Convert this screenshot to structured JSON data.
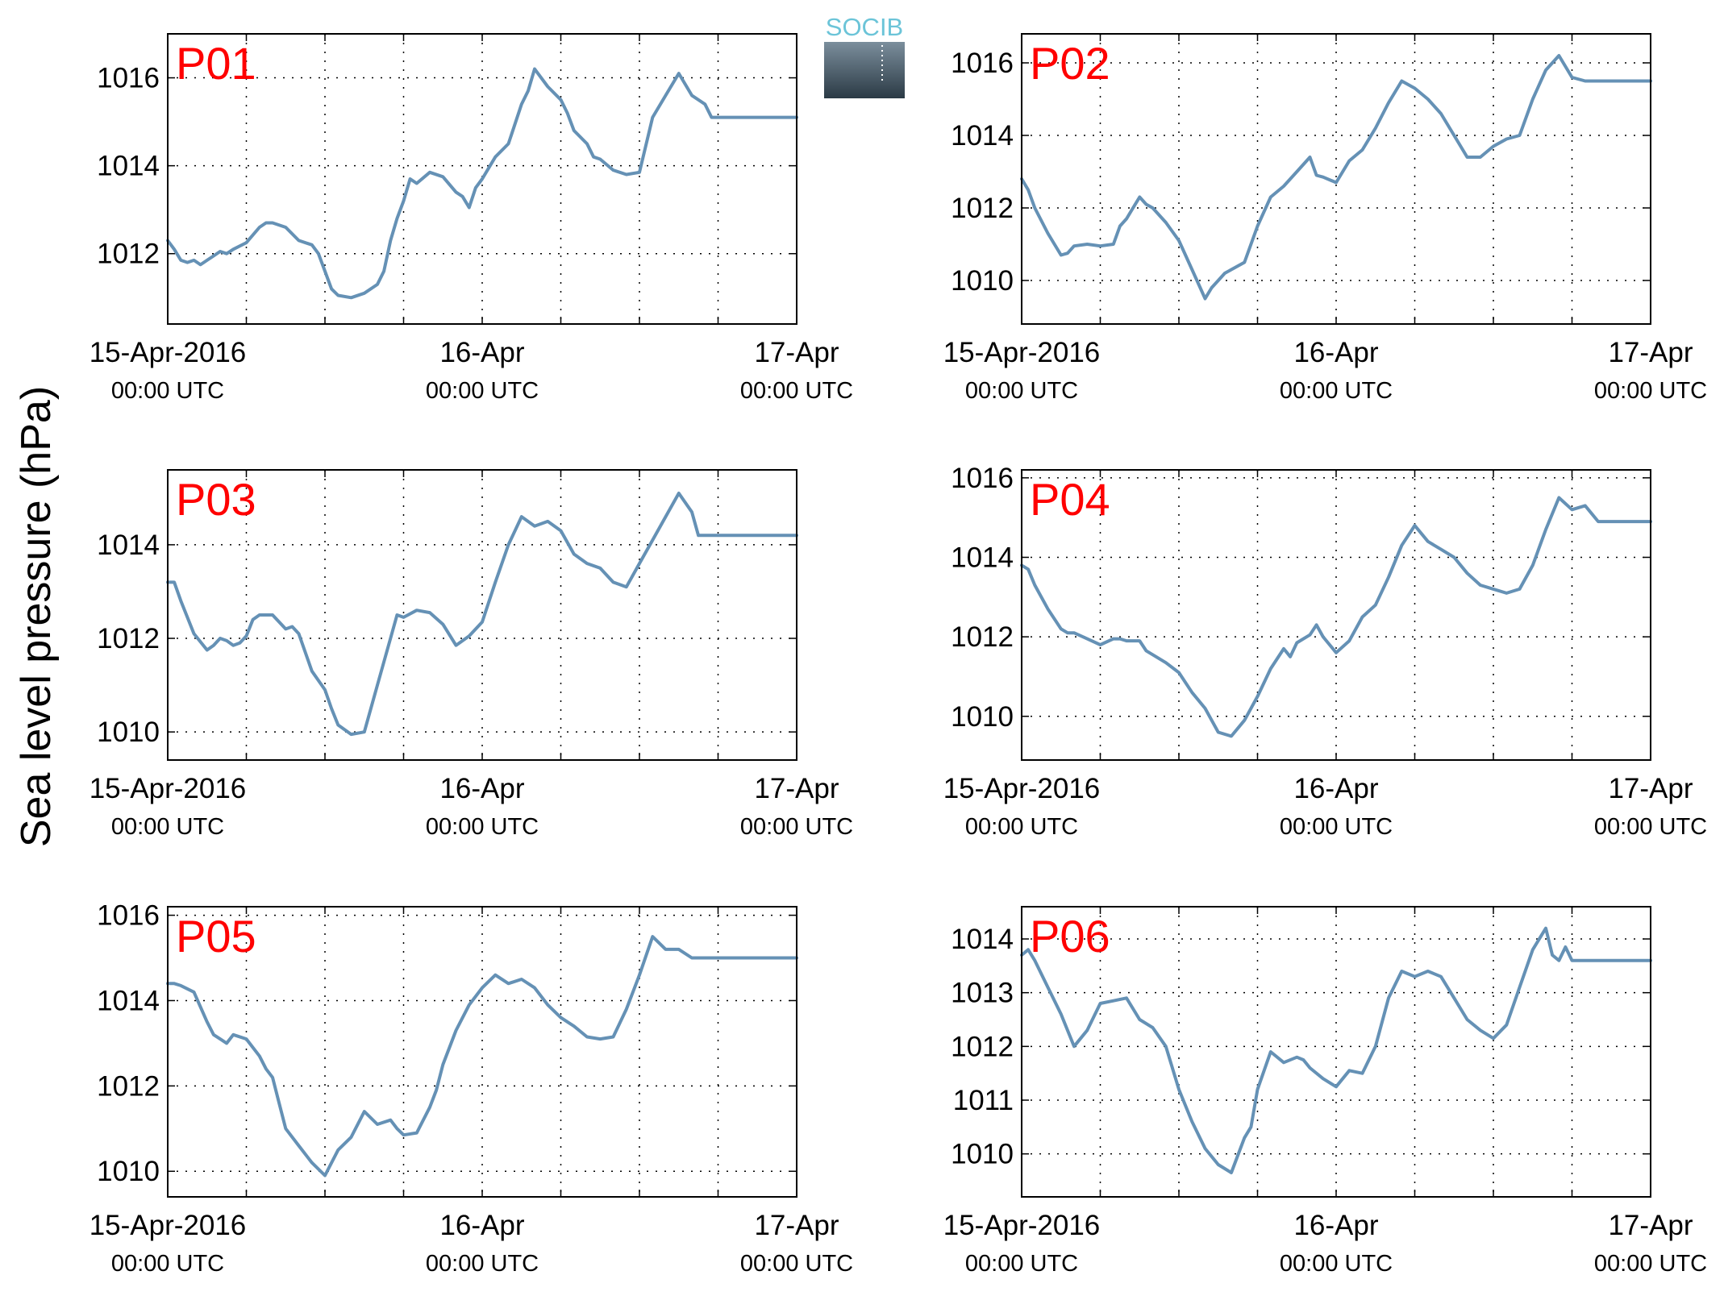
{
  "figure": {
    "ylabel": "Sea level pressure (hPa)",
    "logo": {
      "text": "SOCIB",
      "text_color": "#6bc4d8",
      "bg_top": "#7b8e9c",
      "bg_bottom": "#2b3a45"
    },
    "line_color": "#6591b5",
    "title_color": "#ff0000",
    "grid": "dotted"
  },
  "x_ticks": [
    {
      "date": "15-Apr-2016",
      "time": "00:00 UTC"
    },
    {
      "date": "16-Apr",
      "time": "00:00 UTC"
    },
    {
      "date": "17-Apr",
      "time": "00:00 UTC"
    }
  ],
  "chart_data": [
    {
      "type": "line",
      "title": "P01",
      "xlabel": "",
      "ylabel": "Sea level pressure (hPa)",
      "xlim": [
        0,
        48
      ],
      "ylim": [
        1010.4,
        1017.0
      ],
      "yticks": [
        1012,
        1014,
        1016
      ],
      "series": [
        {
          "x": [
            0,
            0.5,
            1,
            1.5,
            2,
            2.5,
            3,
            3.5,
            4,
            4.5,
            5,
            6,
            7,
            7.5,
            8,
            9,
            10,
            11,
            11.5,
            12,
            12.5,
            13,
            14,
            15,
            16,
            16.5,
            17,
            17.5,
            18,
            18.5,
            19,
            20,
            21,
            22,
            22.5,
            23,
            23.5,
            24,
            25,
            26,
            27,
            27.5,
            28,
            29,
            30,
            30.5,
            31,
            32,
            32.5,
            33,
            34,
            35,
            36,
            37,
            38,
            39,
            40,
            41,
            41.5,
            42,
            43,
            44,
            45,
            45.5,
            46,
            46.5,
            47,
            48
          ],
          "y": [
            1012.3,
            1012.1,
            1011.85,
            1011.8,
            1011.85,
            1011.75,
            1011.85,
            1011.95,
            1012.05,
            1012.0,
            1012.1,
            1012.25,
            1012.6,
            1012.7,
            1012.7,
            1012.6,
            1012.3,
            1012.2,
            1012.0,
            1011.6,
            1011.2,
            1011.05,
            1011.0,
            1011.1,
            1011.3,
            1011.6,
            1012.3,
            1012.8,
            1013.2,
            1013.7,
            1013.6,
            1013.85,
            1013.75,
            1013.4,
            1013.3,
            1013.05,
            1013.5,
            1013.7,
            1014.2,
            1014.5,
            1015.4,
            1015.7,
            1016.2,
            1015.8,
            1015.5,
            1015.2,
            1014.8,
            1014.5,
            1014.2,
            1014.15,
            1013.9,
            1013.8,
            1013.85,
            1015.1,
            1015.6,
            1016.1,
            1015.6,
            1015.4,
            1015.1,
            1015.1,
            1015.1,
            1015.1,
            1015.1,
            1015.1,
            1015.1,
            1015.1,
            1015.1,
            1015.1
          ]
        }
      ]
    },
    {
      "type": "line",
      "title": "P02",
      "xlabel": "",
      "ylabel": "Sea level pressure (hPa)",
      "xlim": [
        0,
        48
      ],
      "ylim": [
        1008.8,
        1016.8
      ],
      "yticks": [
        1010,
        1012,
        1014,
        1016
      ],
      "series": [
        {
          "x": [
            0,
            0.5,
            1,
            2,
            3,
            3.5,
            4,
            5,
            6,
            7,
            7.5,
            8,
            8.5,
            9,
            9.5,
            10,
            11,
            12,
            13,
            14,
            14.5,
            15,
            15.5,
            16,
            17,
            18,
            19,
            20,
            21,
            22,
            22.5,
            23,
            24,
            25,
            26,
            27,
            28,
            29,
            30,
            31,
            32,
            33,
            34,
            35,
            36,
            37,
            38,
            39,
            40,
            41,
            42,
            43,
            44,
            44.5,
            45,
            46,
            47,
            48
          ],
          "y": [
            1012.8,
            1012.5,
            1012.0,
            1011.3,
            1010.7,
            1010.75,
            1010.95,
            1011.0,
            1010.95,
            1011.0,
            1011.5,
            1011.7,
            1012.0,
            1012.3,
            1012.1,
            1012.0,
            1011.6,
            1011.1,
            1010.3,
            1009.5,
            1009.8,
            1010.0,
            1010.2,
            1010.3,
            1010.5,
            1011.5,
            1012.3,
            1012.6,
            1013.0,
            1013.4,
            1012.9,
            1012.85,
            1012.7,
            1013.3,
            1013.6,
            1014.2,
            1014.9,
            1015.5,
            1015.3,
            1015.0,
            1014.6,
            1014.0,
            1013.4,
            1013.4,
            1013.7,
            1013.9,
            1014.0,
            1015.0,
            1015.8,
            1016.2,
            1015.6,
            1015.5,
            1015.5,
            1015.5,
            1015.5,
            1015.5,
            1015.5,
            1015.5
          ]
        }
      ]
    },
    {
      "type": "line",
      "title": "P03",
      "xlabel": "",
      "ylabel": "Sea level pressure (hPa)",
      "xlim": [
        0,
        48
      ],
      "ylim": [
        1009.4,
        1015.6
      ],
      "yticks": [
        1010,
        1012,
        1014
      ],
      "series": [
        {
          "x": [
            0,
            0.5,
            1,
            2,
            3,
            3.5,
            4,
            4.5,
            5,
            5.5,
            6,
            6.5,
            7,
            7.5,
            8,
            9,
            9.5,
            10,
            11,
            12,
            12.5,
            13,
            14,
            15,
            16,
            17,
            17.5,
            18,
            19,
            20,
            21,
            22,
            23,
            24,
            25,
            26,
            27,
            28,
            29,
            30,
            31,
            32,
            33,
            34,
            35,
            36,
            37,
            38,
            39,
            40,
            40.5,
            41,
            41.5,
            42,
            42.5,
            43,
            44,
            45,
            46,
            47,
            48
          ],
          "y": [
            1013.2,
            1013.2,
            1012.8,
            1012.1,
            1011.75,
            1011.85,
            1012.0,
            1011.95,
            1011.85,
            1011.9,
            1012.05,
            1012.4,
            1012.5,
            1012.5,
            1012.5,
            1012.2,
            1012.25,
            1012.1,
            1011.3,
            1010.9,
            1010.5,
            1010.15,
            1009.95,
            1010.0,
            1011.0,
            1012.0,
            1012.5,
            1012.45,
            1012.6,
            1012.55,
            1012.3,
            1011.85,
            1012.05,
            1012.35,
            1013.2,
            1014.0,
            1014.6,
            1014.4,
            1014.5,
            1014.3,
            1013.8,
            1013.6,
            1013.5,
            1013.2,
            1013.1,
            1013.6,
            1014.1,
            1014.6,
            1015.1,
            1014.7,
            1014.2,
            1014.2,
            1014.2,
            1014.2,
            1014.2,
            1014.2,
            1014.2,
            1014.2,
            1014.2,
            1014.2,
            1014.2
          ]
        }
      ]
    },
    {
      "type": "line",
      "title": "P04",
      "xlabel": "",
      "ylabel": "Sea level pressure (hPa)",
      "xlim": [
        0,
        48
      ],
      "ylim": [
        1008.9,
        1016.2
      ],
      "yticks": [
        1010,
        1012,
        1014,
        1016
      ],
      "series": [
        {
          "x": [
            0,
            0.5,
            1,
            2,
            3,
            3.5,
            4,
            5,
            6,
            7,
            7.5,
            8,
            9,
            9.5,
            10,
            11,
            12,
            13,
            14,
            15,
            16,
            17,
            18,
            19,
            20,
            20.5,
            21,
            22,
            22.5,
            23,
            24,
            25,
            26,
            27,
            28,
            29,
            30,
            31,
            32,
            33,
            34,
            35,
            36,
            37,
            38,
            39,
            40,
            41,
            42,
            43,
            44,
            44.5,
            45,
            46,
            47,
            48
          ],
          "y": [
            1013.8,
            1013.7,
            1013.3,
            1012.7,
            1012.2,
            1012.1,
            1012.1,
            1011.95,
            1011.8,
            1011.95,
            1011.95,
            1011.9,
            1011.9,
            1011.65,
            1011.55,
            1011.35,
            1011.1,
            1010.6,
            1010.2,
            1009.6,
            1009.5,
            1009.9,
            1010.5,
            1011.2,
            1011.7,
            1011.5,
            1011.85,
            1012.05,
            1012.3,
            1012.0,
            1011.6,
            1011.9,
            1012.5,
            1012.8,
            1013.5,
            1014.3,
            1014.8,
            1014.4,
            1014.2,
            1014.0,
            1013.6,
            1013.3,
            1013.2,
            1013.1,
            1013.2,
            1013.8,
            1014.7,
            1015.5,
            1015.2,
            1015.3,
            1014.9,
            1014.9,
            1014.9,
            1014.9,
            1014.9,
            1014.9
          ]
        }
      ]
    },
    {
      "type": "line",
      "title": "P05",
      "xlabel": "",
      "ylabel": "Sea level pressure (hPa)",
      "xlim": [
        0,
        48
      ],
      "ylim": [
        1009.4,
        1016.2
      ],
      "yticks": [
        1010,
        1012,
        1014,
        1016
      ],
      "series": [
        {
          "x": [
            0,
            0.5,
            1,
            2,
            3,
            3.5,
            4,
            4.5,
            5,
            6,
            7,
            7.5,
            8,
            8.5,
            9,
            10,
            11,
            12,
            13,
            14,
            15,
            16,
            17,
            17.5,
            18,
            19,
            20,
            20.5,
            21,
            22,
            23,
            24,
            25,
            26,
            27,
            28,
            29,
            30,
            31,
            32,
            33,
            34,
            35,
            36,
            37,
            38,
            38.5,
            39,
            40,
            41,
            42,
            43,
            44,
            45,
            46,
            47,
            48
          ],
          "y": [
            1014.4,
            1014.4,
            1014.35,
            1014.2,
            1013.5,
            1013.2,
            1013.1,
            1013.0,
            1013.2,
            1013.1,
            1012.7,
            1012.4,
            1012.2,
            1011.6,
            1011.0,
            1010.6,
            1010.2,
            1009.9,
            1010.5,
            1010.8,
            1011.4,
            1011.1,
            1011.2,
            1011.0,
            1010.85,
            1010.9,
            1011.5,
            1011.9,
            1012.5,
            1013.3,
            1013.9,
            1014.3,
            1014.6,
            1014.4,
            1014.5,
            1014.3,
            1013.9,
            1013.6,
            1013.4,
            1013.15,
            1013.1,
            1013.15,
            1013.8,
            1014.6,
            1015.5,
            1015.2,
            1015.2,
            1015.2,
            1015.0,
            1015.0,
            1015.0,
            1015.0,
            1015.0,
            1015.0,
            1015.0,
            1015.0,
            1015.0
          ]
        }
      ]
    },
    {
      "type": "line",
      "title": "P06",
      "xlabel": "",
      "ylabel": "Sea level pressure (hPa)",
      "xlim": [
        0,
        48
      ],
      "ylim": [
        1009.2,
        1014.6
      ],
      "yticks": [
        1010,
        1011,
        1012,
        1013,
        1014
      ],
      "series": [
        {
          "x": [
            0,
            0.5,
            1,
            2,
            3,
            4,
            5,
            6,
            7,
            8,
            9,
            10,
            11,
            12,
            13,
            14,
            15,
            16,
            17,
            17.5,
            18,
            19,
            20,
            21,
            21.5,
            22,
            23,
            24,
            25,
            26,
            27,
            28,
            29,
            30,
            31,
            32,
            33,
            34,
            35,
            36,
            37,
            38,
            39,
            40,
            40.5,
            41,
            41.5,
            42,
            42.5,
            43,
            44,
            45,
            46,
            47,
            48
          ],
          "y": [
            1013.7,
            1013.8,
            1013.6,
            1013.1,
            1012.6,
            1012.0,
            1012.3,
            1012.8,
            1012.85,
            1012.9,
            1012.5,
            1012.35,
            1012.0,
            1011.2,
            1010.6,
            1010.1,
            1009.8,
            1009.65,
            1010.3,
            1010.5,
            1011.2,
            1011.9,
            1011.7,
            1011.8,
            1011.75,
            1011.6,
            1011.4,
            1011.25,
            1011.55,
            1011.5,
            1012.0,
            1012.9,
            1013.4,
            1013.3,
            1013.4,
            1013.3,
            1012.9,
            1012.5,
            1012.3,
            1012.15,
            1012.4,
            1013.1,
            1013.8,
            1014.2,
            1013.7,
            1013.6,
            1013.85,
            1013.6,
            1013.6,
            1013.6,
            1013.6,
            1013.6,
            1013.6,
            1013.6,
            1013.6
          ]
        }
      ]
    }
  ]
}
